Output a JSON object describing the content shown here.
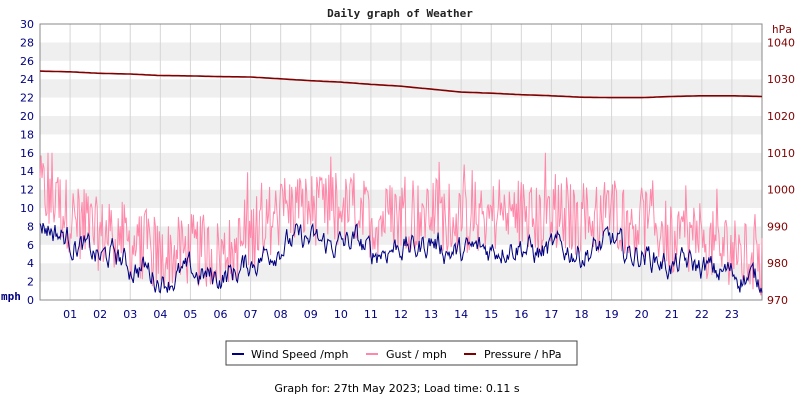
{
  "chart_data": {
    "type": "line",
    "title": "Daily graph of Weather",
    "left_axis": {
      "label": "mph",
      "min": 0,
      "max": 30,
      "ticks": [
        0,
        2,
        4,
        6,
        8,
        10,
        12,
        14,
        16,
        18,
        20,
        22,
        24,
        26,
        28,
        30
      ]
    },
    "right_axis": {
      "label": "hPa",
      "min": 970,
      "max": 1045,
      "ticks": [
        970,
        980,
        990,
        1000,
        1010,
        1020,
        1030,
        1040
      ]
    },
    "x_axis": {
      "min": 0,
      "max": 24,
      "ticks": [
        "01",
        "02",
        "03",
        "04",
        "05",
        "06",
        "07",
        "08",
        "09",
        "10",
        "11",
        "12",
        "13",
        "14",
        "15",
        "16",
        "17",
        "18",
        "19",
        "20",
        "21",
        "22",
        "23"
      ]
    },
    "grid": true,
    "legend_position": "bottom",
    "series": [
      {
        "name": "Wind Speed /mph",
        "axis": "left",
        "color": "#000080",
        "x": [
          0,
          0.5,
          1,
          1.5,
          2,
          2.5,
          3,
          3.5,
          4,
          4.5,
          5,
          5.5,
          6,
          6.5,
          7,
          7.5,
          8,
          8.5,
          9,
          9.5,
          10,
          10.5,
          11,
          11.5,
          12,
          12.5,
          13,
          13.5,
          14,
          14.5,
          15,
          15.5,
          16,
          16.5,
          17,
          17.5,
          18,
          18.5,
          19,
          19.5,
          20,
          20.5,
          21,
          21.5,
          22,
          22.5,
          23,
          23.5,
          24
        ],
        "values": [
          8.5,
          7.5,
          6.5,
          5.5,
          4.5,
          5,
          3.5,
          3.5,
          2,
          2.5,
          3,
          2.5,
          2.5,
          3,
          4,
          5,
          6,
          6.5,
          6.5,
          6,
          6,
          6.5,
          5,
          5.5,
          6,
          5.5,
          6.5,
          5.5,
          5,
          5.5,
          5.5,
          6,
          6,
          5,
          5.5,
          5.5,
          5,
          5.5,
          6.5,
          5,
          5,
          4.5,
          3.5,
          4,
          3.5,
          3,
          3,
          2.5,
          2
        ]
      },
      {
        "name": "Gust / mph",
        "axis": "left",
        "color": "#ff88aa",
        "x": [
          0,
          0.5,
          1,
          1.5,
          2,
          2.5,
          3,
          3.5,
          4,
          4.5,
          5,
          5.5,
          6,
          6.5,
          7,
          7.5,
          8,
          8.5,
          9,
          9.5,
          10,
          10.5,
          11,
          11.5,
          12,
          12.5,
          13,
          13.5,
          14,
          14.5,
          15,
          15.5,
          16,
          16.5,
          17,
          17.5,
          18,
          18.5,
          19,
          19.5,
          20,
          20.5,
          21,
          21.5,
          22,
          22.5,
          23,
          23.5,
          24
        ],
        "values": [
          12,
          11,
          9,
          8,
          7,
          7.5,
          6,
          6,
          4.5,
          5,
          5.5,
          5,
          5,
          5.5,
          7,
          8.5,
          9.5,
          10,
          10,
          9.5,
          9.5,
          10,
          8.5,
          9,
          9.5,
          9,
          10,
          9,
          8.5,
          9,
          9,
          9.5,
          9.5,
          8.5,
          9,
          9,
          8.5,
          9,
          10,
          8.5,
          8.5,
          8,
          6.5,
          7,
          6.5,
          5.5,
          5.5,
          4.5,
          4
        ]
      },
      {
        "name": "Pressure / hPa",
        "axis": "right",
        "color": "#800000",
        "x": [
          0,
          1,
          2,
          3,
          4,
          5,
          6,
          7,
          8,
          9,
          10,
          11,
          12,
          13,
          14,
          15,
          16,
          17,
          18,
          19,
          20,
          21,
          22,
          23,
          24
        ],
        "values": [
          1032.2,
          1032,
          1031.6,
          1031.4,
          1031,
          1030.9,
          1030.7,
          1030.6,
          1030.1,
          1029.6,
          1029.2,
          1028.6,
          1028.1,
          1027.3,
          1026.5,
          1026.2,
          1025.8,
          1025.5,
          1025.1,
          1025,
          1025,
          1025.3,
          1025.5,
          1025.5,
          1025.3
        ]
      }
    ]
  },
  "footer": {
    "text": "Graph for: 27th May 2023; Load time: 0.11 s"
  }
}
